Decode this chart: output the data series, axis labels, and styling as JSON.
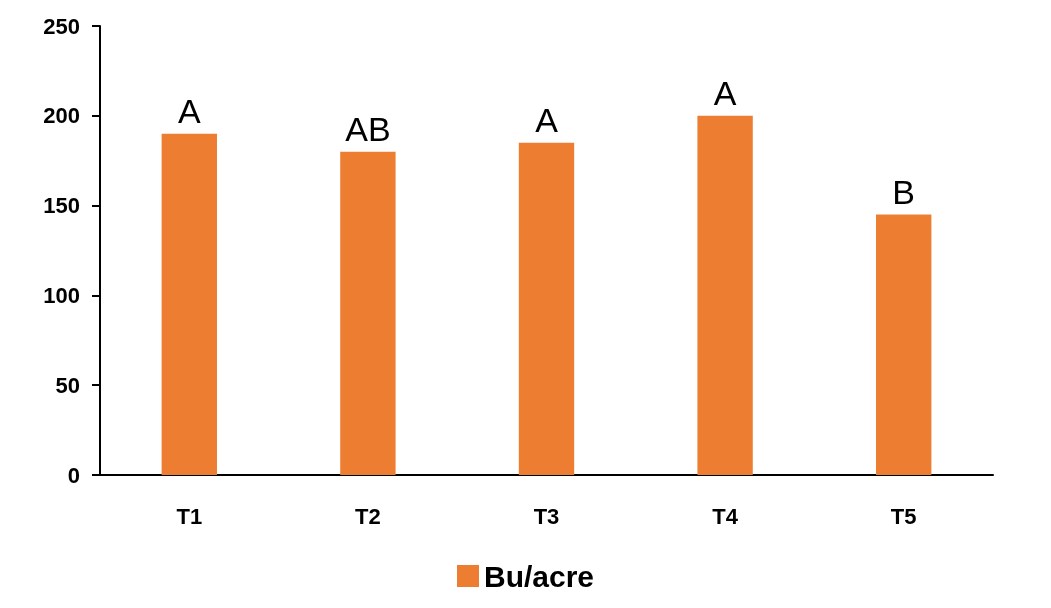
{
  "chart_data": {
    "type": "bar",
    "categories": [
      "T1",
      "T2",
      "T3",
      "T4",
      "T5"
    ],
    "series": [
      {
        "name": "Bu/acre",
        "color": "#ed7d31",
        "values": [
          190,
          180,
          185,
          200,
          145
        ]
      }
    ],
    "ylim": [
      0,
      250
    ],
    "yticks": [
      0,
      50,
      100,
      150,
      200,
      250
    ],
    "grid": false,
    "legend": "bottom",
    "annotations": [
      {
        "text": "A",
        "x": "T1",
        "y": 190
      },
      {
        "text": "AB",
        "x": "T2",
        "y": 180
      },
      {
        "text": "A",
        "x": "T3",
        "y": 185
      },
      {
        "text": "A",
        "x": "T4",
        "y": 200
      },
      {
        "text": "B",
        "x": "T5",
        "y": 145
      }
    ]
  }
}
